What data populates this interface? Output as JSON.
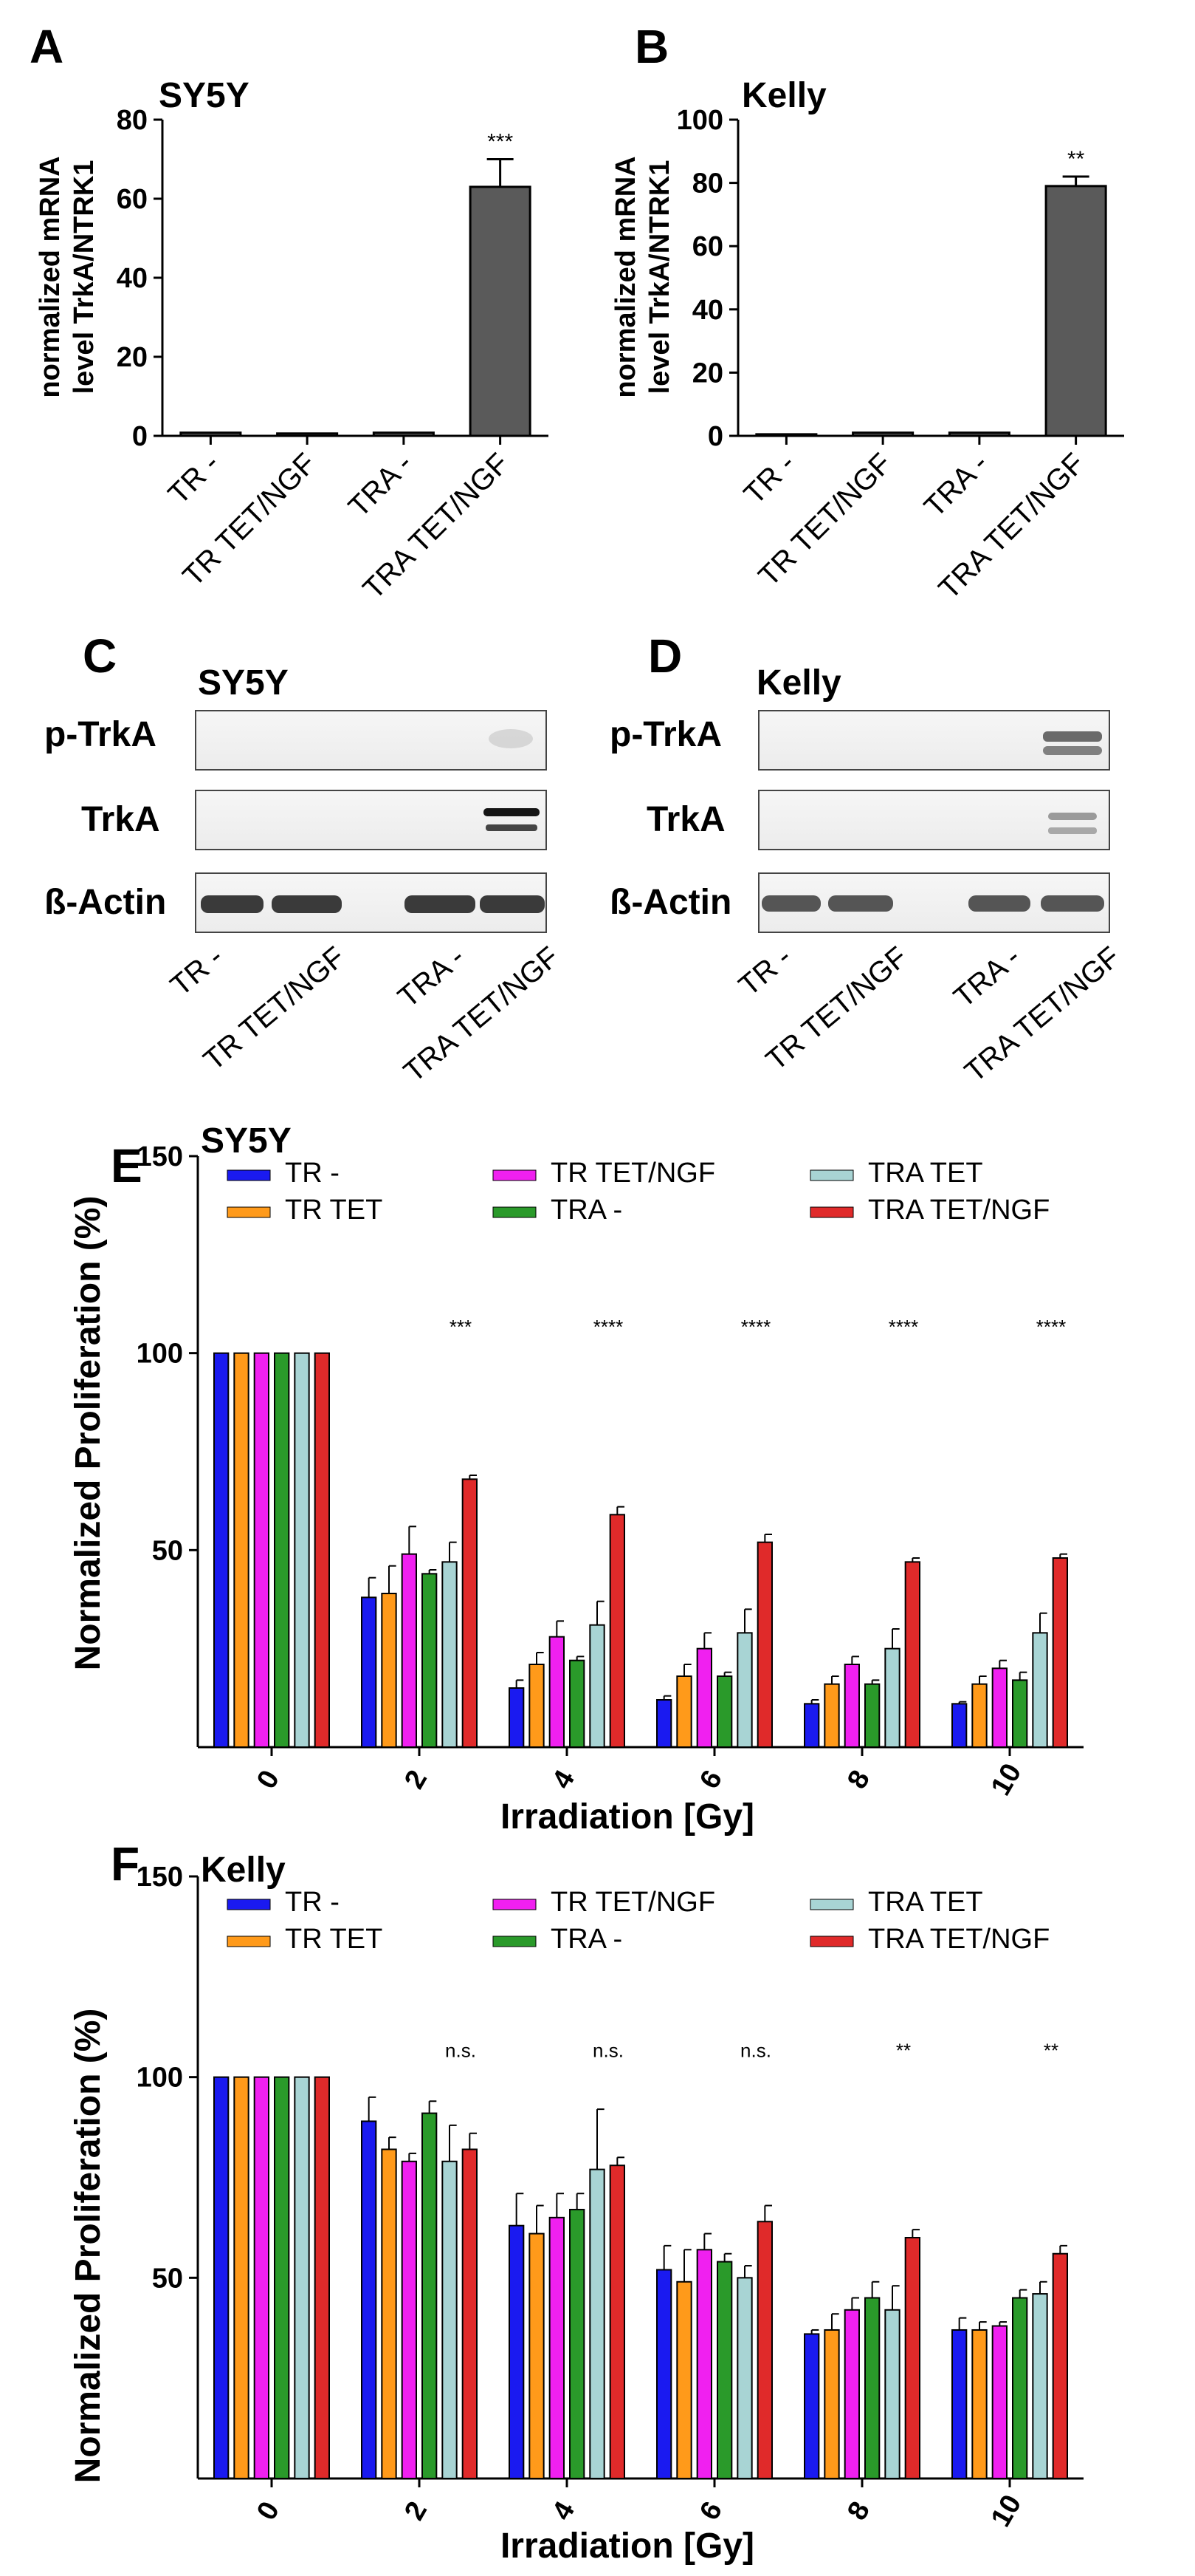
{
  "panels": {
    "A": "A",
    "B": "B",
    "C": "C",
    "D": "D",
    "E": "E",
    "F": "F"
  },
  "colors": {
    "TR -": "#1a1af0",
    "TR TET": "#ff9a1a",
    "TR TET/NGF": "#f020f0",
    "TRA -": "#2a9a2a",
    "TRA TET": "#a8d4d4",
    "TRA TET/NGF": "#e02a2a",
    "bar_gray": "#5a5a5a"
  },
  "chart_data": [
    {
      "id": "A",
      "type": "bar",
      "title": "SY5Y",
      "ylabel_line1": "normalized mRNA",
      "ylabel_line2": "level TrkA/NTRK1",
      "categories": [
        "TR -",
        "TR TET/NGF",
        "TRA -",
        "TRA TET/NGF"
      ],
      "values": [
        0.8,
        0.6,
        0.8,
        63
      ],
      "errors": [
        0,
        0,
        0,
        7
      ],
      "significance": [
        "",
        "",
        "",
        "***"
      ],
      "ylim": [
        0,
        80
      ],
      "yticks": [
        0,
        20,
        40,
        60,
        80
      ]
    },
    {
      "id": "B",
      "type": "bar",
      "title": "Kelly",
      "ylabel_line1": "normalized mRNA",
      "ylabel_line2": "level TrkA/NTRK1",
      "categories": [
        "TR -",
        "TR TET/NGF",
        "TRA -",
        "TRA TET/NGF"
      ],
      "values": [
        0.5,
        1,
        1,
        79
      ],
      "errors": [
        0,
        0,
        0,
        3
      ],
      "significance": [
        "",
        "",
        "",
        "**"
      ],
      "ylim": [
        0,
        100
      ],
      "yticks": [
        0,
        20,
        40,
        60,
        80,
        100
      ]
    },
    {
      "id": "E",
      "type": "bar",
      "title": "SY5Y",
      "ylabel": "Normalized Proliferation (%)",
      "xlabel": "Irradiation [Gy]",
      "categories": [
        "0",
        "2",
        "4",
        "6",
        "8",
        "10"
      ],
      "series": [
        {
          "name": "TR -",
          "values": [
            100,
            38,
            15,
            12,
            11,
            11
          ],
          "errors": [
            0,
            5,
            2,
            1,
            1,
            0.5
          ]
        },
        {
          "name": "TR TET",
          "values": [
            100,
            39,
            21,
            18,
            16,
            16
          ],
          "errors": [
            0,
            7,
            3,
            3,
            2,
            2
          ]
        },
        {
          "name": "TR TET/NGF",
          "values": [
            100,
            49,
            28,
            25,
            21,
            20
          ],
          "errors": [
            0,
            7,
            4,
            4,
            2,
            2
          ]
        },
        {
          "name": "TRA -",
          "values": [
            100,
            44,
            22,
            18,
            16,
            17
          ],
          "errors": [
            0,
            1,
            1,
            1,
            1,
            2
          ]
        },
        {
          "name": "TRA TET",
          "values": [
            100,
            47,
            31,
            29,
            25,
            29
          ],
          "errors": [
            0,
            5,
            6,
            6,
            5,
            5
          ]
        },
        {
          "name": "TRA TET/NGF",
          "values": [
            100,
            68,
            59,
            52,
            47,
            48
          ],
          "errors": [
            0,
            1,
            2,
            2,
            1,
            1
          ]
        }
      ],
      "significance": [
        "",
        "***",
        "****",
        "****",
        "****",
        "****"
      ],
      "ylim": [
        0,
        150
      ],
      "yticks": [
        50,
        100,
        150
      ]
    },
    {
      "id": "F",
      "type": "bar",
      "title": "Kelly",
      "ylabel": "Normalized Proliferation (%)",
      "xlabel": "Irradiation [Gy]",
      "categories": [
        "0",
        "2",
        "4",
        "6",
        "8",
        "10"
      ],
      "series": [
        {
          "name": "TR -",
          "values": [
            100,
            89,
            63,
            52,
            36,
            37
          ],
          "errors": [
            0,
            6,
            8,
            6,
            1,
            3
          ]
        },
        {
          "name": "TR TET",
          "values": [
            100,
            82,
            61,
            49,
            37,
            37
          ],
          "errors": [
            0,
            3,
            7,
            8,
            4,
            2
          ]
        },
        {
          "name": "TR TET/NGF",
          "values": [
            100,
            79,
            65,
            57,
            42,
            38
          ],
          "errors": [
            0,
            2,
            6,
            4,
            3,
            1
          ]
        },
        {
          "name": "TRA -",
          "values": [
            100,
            91,
            67,
            54,
            45,
            45
          ],
          "errors": [
            0,
            3,
            4,
            2,
            4,
            2
          ]
        },
        {
          "name": "TRA TET",
          "values": [
            100,
            79,
            77,
            50,
            42,
            46
          ],
          "errors": [
            0,
            9,
            15,
            3,
            6,
            3
          ]
        },
        {
          "name": "TRA TET/NGF",
          "values": [
            100,
            82,
            78,
            64,
            60,
            56
          ],
          "errors": [
            0,
            4,
            2,
            4,
            2,
            2
          ]
        }
      ],
      "significance": [
        "",
        "n.s.",
        "n.s.",
        "n.s.",
        "**",
        "**"
      ],
      "ylim": [
        0,
        150
      ],
      "yticks": [
        50,
        100,
        150
      ]
    }
  ],
  "blots": [
    {
      "id": "C",
      "title": "SY5Y",
      "rows": [
        "p-TrkA",
        "TrkA",
        "ß-Actin"
      ],
      "lanes": [
        "TR -",
        "TR TET/NGF",
        "TRA -",
        "TRA TET/NGF"
      ]
    },
    {
      "id": "D",
      "title": "Kelly",
      "rows": [
        "p-TrkA",
        "TrkA",
        "ß-Actin"
      ],
      "lanes": [
        "TR -",
        "TR TET/NGF",
        "TRA -",
        "TRA TET/NGF"
      ]
    }
  ]
}
